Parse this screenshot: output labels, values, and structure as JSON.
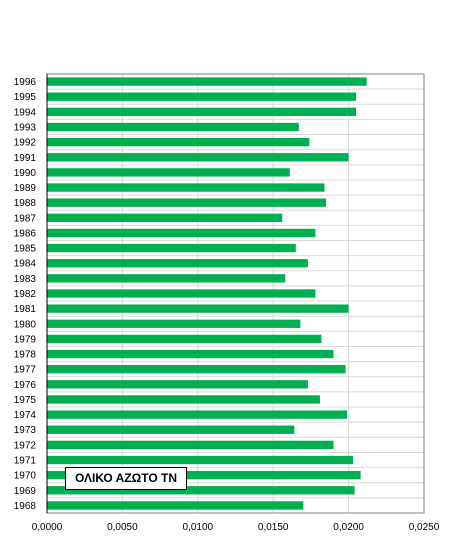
{
  "chart_data": {
    "type": "bar",
    "orientation": "horizontal",
    "categories": [
      "1996",
      "1995",
      "1994",
      "1993",
      "1992",
      "1991",
      "1990",
      "1989",
      "1988",
      "1987",
      "1986",
      "1985",
      "1984",
      "1983",
      "1982",
      "1981",
      "1980",
      "1979",
      "1978",
      "1977",
      "1976",
      "1975",
      "1974",
      "1973",
      "1972",
      "1971",
      "1970",
      "1969",
      "1968"
    ],
    "values": [
      0.0212,
      0.0205,
      0.0205,
      0.0167,
      0.0174,
      0.02,
      0.0161,
      0.0184,
      0.0185,
      0.0156,
      0.0178,
      0.0165,
      0.0173,
      0.0158,
      0.0178,
      0.02,
      0.0168,
      0.0182,
      0.019,
      0.0198,
      0.0173,
      0.0181,
      0.0199,
      0.0164,
      0.019,
      0.0203,
      0.0208,
      0.0204,
      0.017
    ],
    "xlim": [
      0,
      0.025
    ],
    "x_ticks": [
      "0,0000",
      "0,0050",
      "0,0100",
      "0,0150",
      "0,0200",
      "0,0250"
    ],
    "grid": true,
    "bar_color": "#00b050",
    "series_label": "ΟΛΙΚΟ ΑΖΩΤΟ ΤΝ",
    "legend_position": "bottom-left"
  }
}
